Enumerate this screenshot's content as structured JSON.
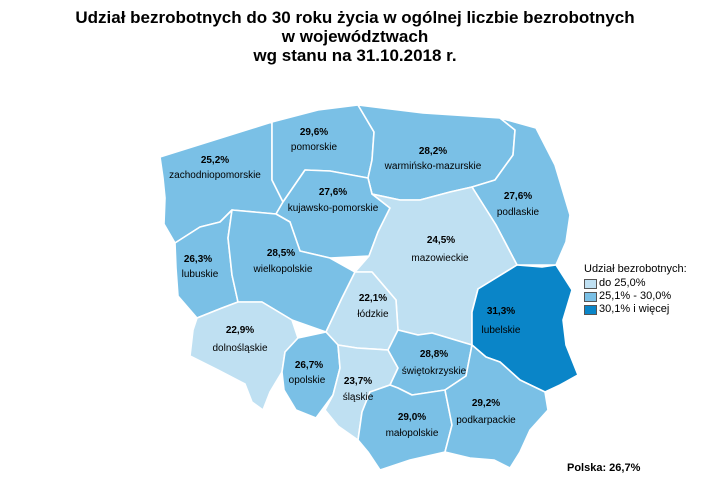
{
  "title": {
    "line1": "Udział bezrobotnych do 30 roku życia w ogólnej liczbie bezrobotnych",
    "line2": "w województwach",
    "line3": "wg stanu na 31.10.2018 r."
  },
  "colors": {
    "low": "#bfe0f2",
    "mid": "#7ac0e6",
    "high": "#0a85c8",
    "border": "#ffffff"
  },
  "regions": [
    {
      "id": "zachodniopomorskie",
      "value": "25,2%",
      "name": "zachodniopomorskie",
      "cls": "mid"
    },
    {
      "id": "pomorskie",
      "value": "29,6%",
      "name": "pomorskie",
      "cls": "mid"
    },
    {
      "id": "warminsko-mazurskie",
      "value": "28,2%",
      "name": "warmińsko-mazurskie",
      "cls": "mid"
    },
    {
      "id": "podlaskie",
      "value": "27,6%",
      "name": "podlaskie",
      "cls": "mid"
    },
    {
      "id": "kujawsko-pomorskie",
      "value": "27,6%",
      "name": "kujawsko-pomorskie",
      "cls": "mid"
    },
    {
      "id": "lubuskie",
      "value": "26,3%",
      "name": "lubuskie",
      "cls": "mid"
    },
    {
      "id": "wielkopolskie",
      "value": "28,5%",
      "name": "wielkopolskie",
      "cls": "mid"
    },
    {
      "id": "mazowieckie",
      "value": "24,5%",
      "name": "mazowieckie",
      "cls": "low"
    },
    {
      "id": "lodzkie",
      "value": "22,1%",
      "name": "łódzkie",
      "cls": "low"
    },
    {
      "id": "lubelskie",
      "value": "31,3%",
      "name": "lubelskie",
      "cls": "high"
    },
    {
      "id": "dolnoslaskie",
      "value": "22,9%",
      "name": "dolnośląskie",
      "cls": "low"
    },
    {
      "id": "opolskie",
      "value": "26,7%",
      "name": "opolskie",
      "cls": "mid"
    },
    {
      "id": "slaskie",
      "value": "23,7%",
      "name": "śląskie",
      "cls": "low"
    },
    {
      "id": "swietokrzyskie",
      "value": "28,8%",
      "name": "świętokrzyskie",
      "cls": "mid"
    },
    {
      "id": "malopolskie",
      "value": "29,0%",
      "name": "małopolskie",
      "cls": "mid"
    },
    {
      "id": "podkarpackie",
      "value": "29,2%",
      "name": "podkarpackie",
      "cls": "mid"
    }
  ],
  "legend": {
    "title": "Udział bezrobotnych:",
    "items": [
      {
        "label": "do 25,0%",
        "cls": "low"
      },
      {
        "label": "25,1% - 30,0%",
        "cls": "mid"
      },
      {
        "label": "30,1% i więcej",
        "cls": "high"
      }
    ]
  },
  "total": "Polska: 26,7%"
}
